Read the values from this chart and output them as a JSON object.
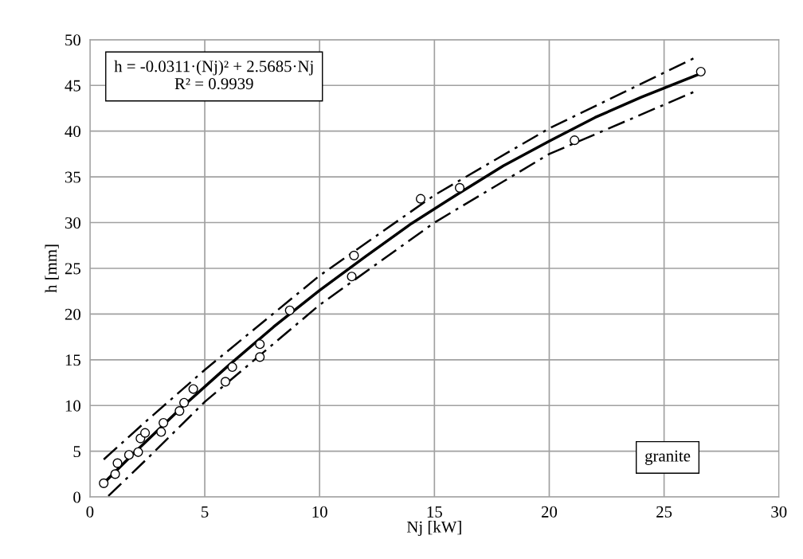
{
  "chart_data": {
    "type": "scatter",
    "xlabel": "Nj [kW]",
    "ylabel": "h [mm]",
    "xlim": [
      0,
      30
    ],
    "ylim": [
      0,
      50
    ],
    "xticks": [
      0,
      5,
      10,
      15,
      20,
      25,
      30
    ],
    "yticks": [
      0,
      5,
      10,
      15,
      20,
      25,
      30,
      35,
      40,
      45,
      50
    ],
    "grid": true,
    "marker": "circle",
    "annotations": [
      "h = -0.0311·(Nj)² + 2.5685·Nj\nR² = 0.9939",
      "granite"
    ],
    "series": [
      {
        "color": "#000000",
        "x": [
          0.6,
          1.1,
          1.2,
          1.7,
          2.1,
          2.2,
          2.4,
          3.1,
          3.2,
          3.9,
          4.1,
          4.5,
          5.9,
          6.2,
          7.4,
          7.4,
          8.7,
          11.4,
          11.5,
          14.4,
          16.1,
          21.1,
          26.6
        ],
        "values": [
          1.5,
          2.5,
          3.7,
          4.6,
          4.9,
          6.4,
          7.0,
          7.1,
          8.1,
          9.4,
          10.3,
          11.8,
          12.6,
          14.2,
          15.3,
          16.7,
          20.4,
          24.1,
          26.4,
          32.6,
          33.8,
          39.0,
          46.5
        ]
      },
      {
        "type": "line",
        "color": "#000000",
        "marker": "none",
        "line_style": "solid",
        "x": [
          0.6,
          2,
          4,
          6,
          8,
          10,
          12,
          14,
          16,
          18,
          20,
          22,
          24,
          26.6
        ],
        "values": [
          1.5,
          5.0,
          9.8,
          14.3,
          18.6,
          22.6,
          26.3,
          29.9,
          33.1,
          36.2,
          38.9,
          41.5,
          43.7,
          46.3
        ]
      },
      {
        "type": "line",
        "color": "#000000",
        "marker": "none",
        "line_style": "dashed",
        "x": [
          0.6,
          2.5,
          5,
          10,
          15,
          20,
          26.4
        ],
        "values": [
          4.1,
          8.4,
          13.9,
          24.2,
          33.0,
          40.3,
          48.1
        ]
      },
      {
        "type": "line",
        "color": "#000000",
        "marker": "none",
        "line_style": "dashed",
        "x": [
          0.8,
          2.5,
          5,
          10,
          15,
          20,
          26.4
        ],
        "values": [
          0.1,
          4.2,
          10.4,
          21.0,
          30.0,
          37.5,
          44.4
        ]
      }
    ]
  }
}
